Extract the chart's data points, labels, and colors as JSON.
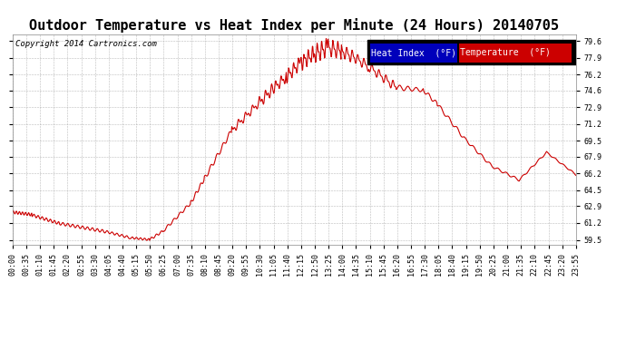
{
  "title": "Outdoor Temperature vs Heat Index per Minute (24 Hours) 20140705",
  "copyright": "Copyright 2014 Cartronics.com",
  "legend_labels": [
    "Heat Index  (°F)",
    "Temperature  (°F)"
  ],
  "legend_colors": [
    "#0000bb",
    "#cc0000"
  ],
  "line_color": "#cc0000",
  "background_color": "#ffffff",
  "plot_bg_color": "#ffffff",
  "grid_color": "#aaaaaa",
  "yticks": [
    59.5,
    61.2,
    62.9,
    64.5,
    66.2,
    67.9,
    69.5,
    71.2,
    72.9,
    74.6,
    76.2,
    77.9,
    79.6
  ],
  "ylim": [
    59.0,
    80.3
  ],
  "xtick_labels": [
    "00:00",
    "00:35",
    "01:10",
    "01:45",
    "02:20",
    "02:55",
    "03:30",
    "04:05",
    "04:40",
    "05:15",
    "05:50",
    "06:25",
    "07:00",
    "07:35",
    "08:10",
    "08:45",
    "09:20",
    "09:55",
    "10:30",
    "11:05",
    "11:40",
    "12:15",
    "12:50",
    "13:25",
    "14:00",
    "14:35",
    "15:10",
    "15:45",
    "16:20",
    "16:55",
    "17:30",
    "18:05",
    "18:40",
    "19:15",
    "19:50",
    "20:25",
    "21:00",
    "21:35",
    "22:10",
    "22:45",
    "23:20",
    "23:55"
  ],
  "title_fontsize": 11,
  "copyright_fontsize": 6.5,
  "tick_fontsize": 6,
  "legend_fontsize": 7
}
